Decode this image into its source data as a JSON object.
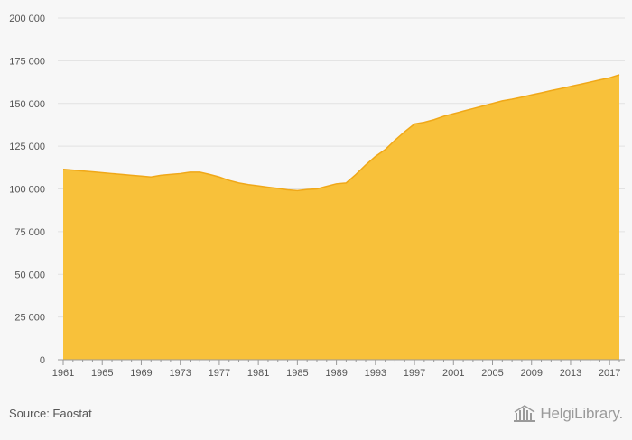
{
  "chart_data": {
    "type": "area",
    "title": "",
    "xlabel": "",
    "ylabel": "",
    "ylim": [
      0,
      200000
    ],
    "yticks": [
      0,
      25000,
      50000,
      75000,
      100000,
      125000,
      150000,
      175000,
      200000
    ],
    "ytick_labels": [
      "0",
      "25 000",
      "50 000",
      "75 000",
      "100 000",
      "125 000",
      "150 000",
      "175 000",
      "200 000"
    ],
    "xticks": [
      1961,
      1965,
      1969,
      1973,
      1977,
      1981,
      1985,
      1989,
      1993,
      1997,
      2001,
      2005,
      2009,
      2013,
      2017
    ],
    "grid": true,
    "colors": {
      "fill": "#f8c13a",
      "line": "#f0a818",
      "grid": "#e2e2e2",
      "axis": "#999999",
      "text": "#555555"
    },
    "x": [
      1961,
      1962,
      1963,
      1964,
      1965,
      1966,
      1967,
      1968,
      1969,
      1970,
      1971,
      1972,
      1973,
      1974,
      1975,
      1976,
      1977,
      1978,
      1979,
      1980,
      1981,
      1982,
      1983,
      1984,
      1985,
      1986,
      1987,
      1988,
      1989,
      1990,
      1991,
      1992,
      1993,
      1994,
      1995,
      1996,
      1997,
      1998,
      1999,
      2000,
      2001,
      2002,
      2003,
      2004,
      2005,
      2006,
      2007,
      2008,
      2009,
      2010,
      2011,
      2012,
      2013,
      2014,
      2015,
      2016,
      2017,
      2018
    ],
    "values": [
      111500,
      111000,
      110500,
      110000,
      109500,
      109000,
      108500,
      108000,
      107500,
      107000,
      108000,
      108500,
      109000,
      109800,
      109800,
      108500,
      107000,
      105000,
      103500,
      102500,
      101800,
      101000,
      100300,
      99500,
      99000,
      99700,
      100000,
      101500,
      103000,
      103500,
      108500,
      114000,
      119000,
      123000,
      128500,
      133500,
      138000,
      139000,
      140500,
      142500,
      144000,
      145500,
      147000,
      148500,
      150000,
      151500,
      152500,
      153700,
      155000,
      156200,
      157500,
      158700,
      160000,
      161200,
      162500,
      163800,
      165000,
      166800
    ]
  },
  "footer": {
    "source": "Source: Faostat",
    "brand": "HelgiLibrary."
  }
}
